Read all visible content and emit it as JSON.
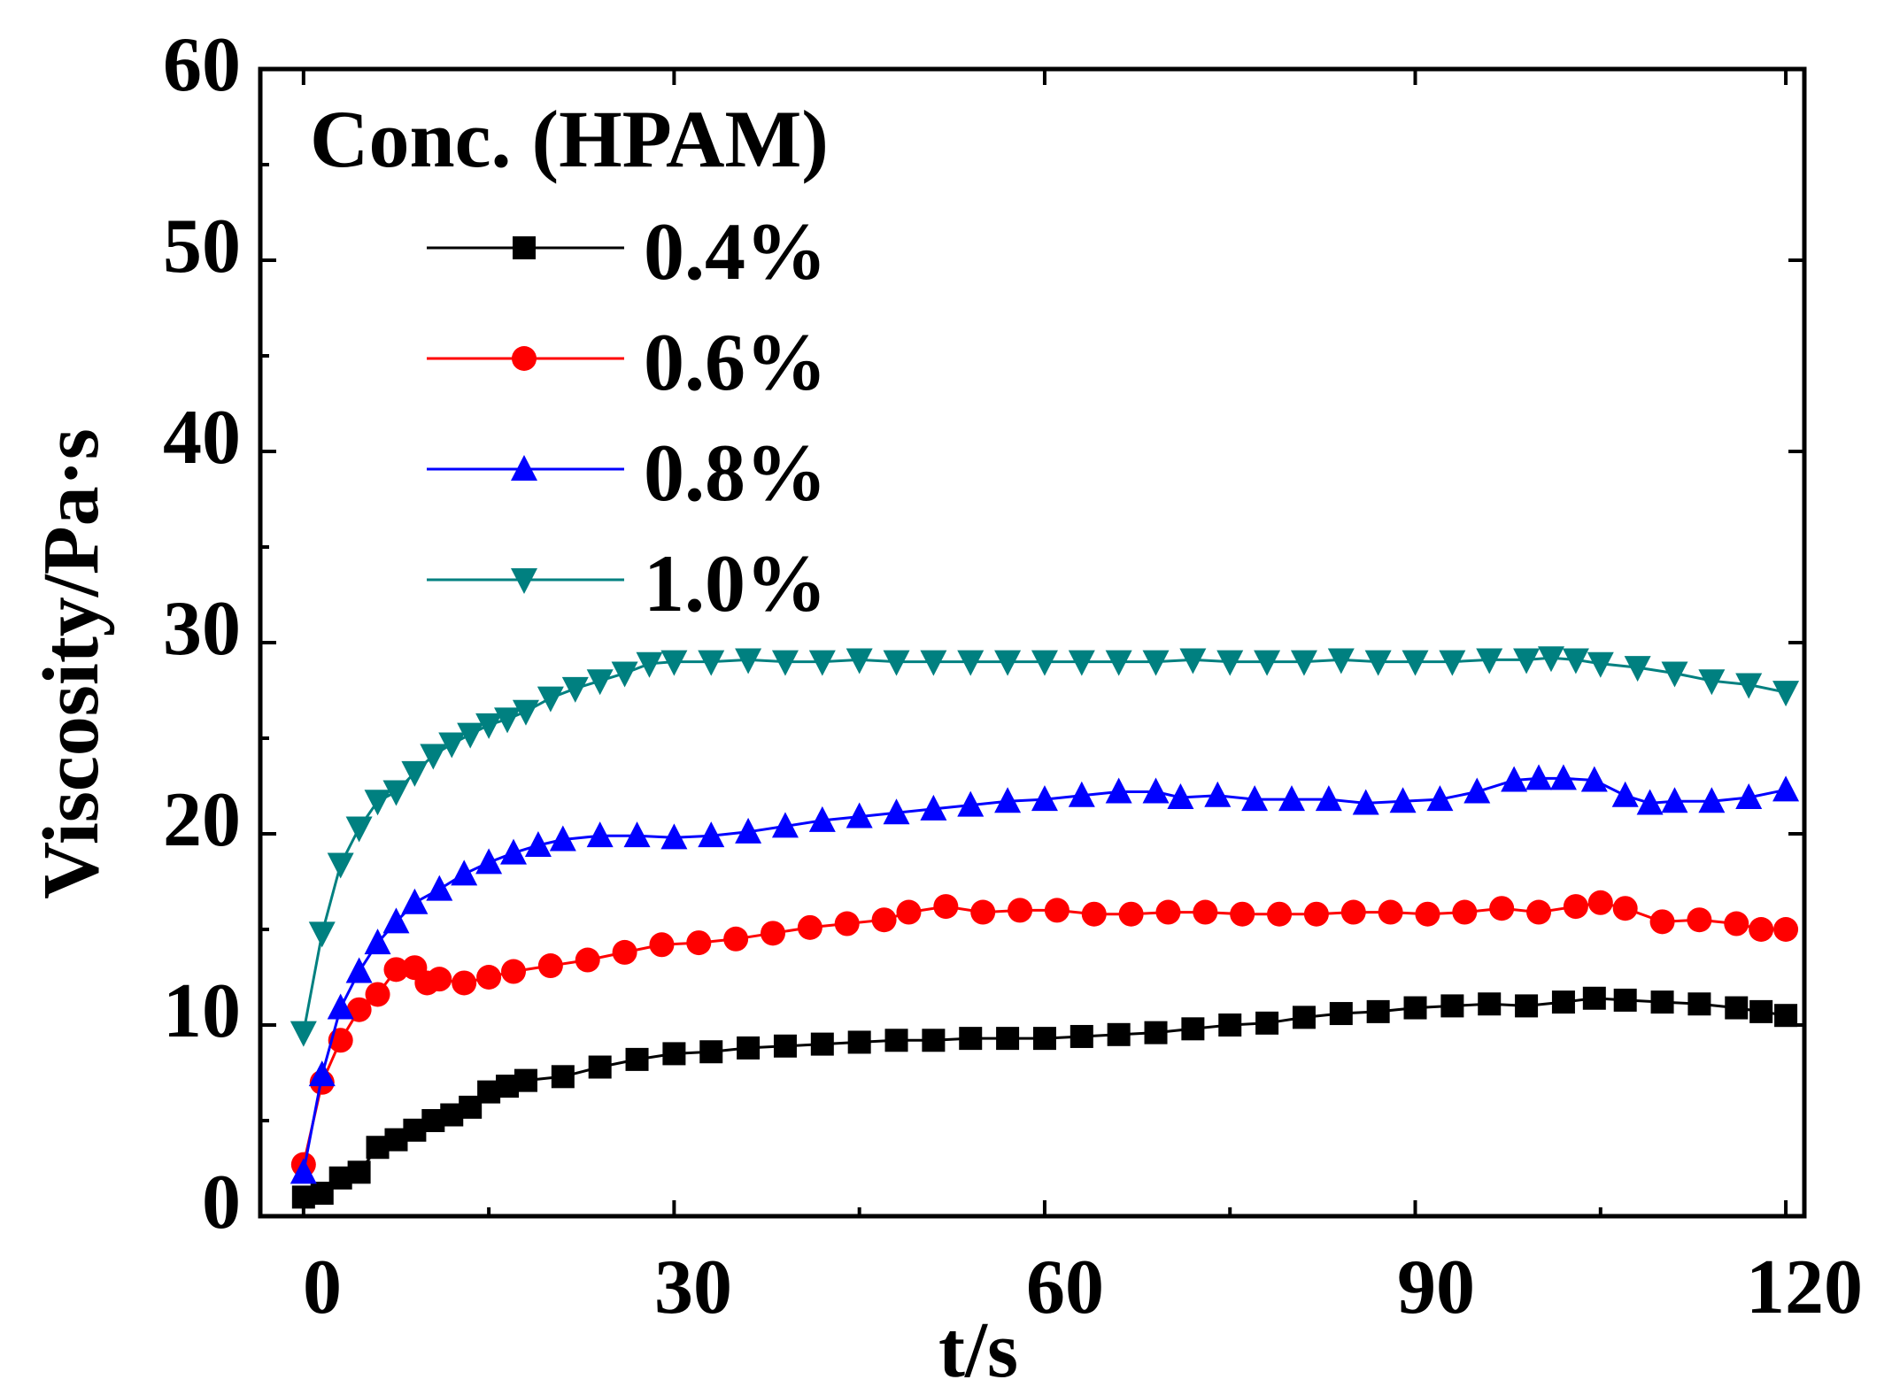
{
  "chart_data": {
    "type": "line",
    "title": "",
    "xlabel": "t/s",
    "ylabel": "Viscosity/Pa·s",
    "xlim": [
      -3.5,
      121.5
    ],
    "ylim": [
      0,
      60
    ],
    "xticks": [
      0,
      30,
      60,
      90,
      120
    ],
    "yticks": [
      0,
      10,
      20,
      30,
      40,
      50,
      60
    ],
    "xtick_labels": [
      "0",
      "30",
      "60",
      "90",
      "120"
    ],
    "ytick_labels": [
      "0",
      "10",
      "20",
      "30",
      "40",
      "50",
      "60"
    ],
    "grid": false,
    "legend_title": "Conc. (HPAM)",
    "legend_position": "top-left",
    "series": [
      {
        "name": "0.4%",
        "color": "#000000",
        "marker": "square",
        "points": [
          [
            0,
            1.0
          ],
          [
            1.5,
            1.2
          ],
          [
            3,
            2.0
          ],
          [
            4.5,
            2.3
          ],
          [
            6,
            3.6
          ],
          [
            7.5,
            4.0
          ],
          [
            9,
            4.5
          ],
          [
            10.5,
            5.0
          ],
          [
            12,
            5.3
          ],
          [
            13.5,
            5.7
          ],
          [
            15,
            6.5
          ],
          [
            16.5,
            6.8
          ],
          [
            18,
            7.1
          ],
          [
            21,
            7.3
          ],
          [
            24,
            7.8
          ],
          [
            27,
            8.2
          ],
          [
            30,
            8.5
          ],
          [
            33,
            8.6
          ],
          [
            36,
            8.8
          ],
          [
            39,
            8.9
          ],
          [
            42,
            9.0
          ],
          [
            45,
            9.1
          ],
          [
            48,
            9.2
          ],
          [
            51,
            9.2
          ],
          [
            54,
            9.3
          ],
          [
            57,
            9.3
          ],
          [
            60,
            9.3
          ],
          [
            63,
            9.4
          ],
          [
            66,
            9.5
          ],
          [
            69,
            9.6
          ],
          [
            72,
            9.8
          ],
          [
            75,
            10.0
          ],
          [
            78,
            10.1
          ],
          [
            81,
            10.4
          ],
          [
            84,
            10.6
          ],
          [
            87,
            10.7
          ],
          [
            90,
            10.9
          ],
          [
            93,
            11.0
          ],
          [
            96,
            11.1
          ],
          [
            99,
            11.0
          ],
          [
            102,
            11.2
          ],
          [
            104.5,
            11.4
          ],
          [
            107,
            11.3
          ],
          [
            110,
            11.2
          ],
          [
            113,
            11.1
          ],
          [
            116,
            10.9
          ],
          [
            118,
            10.7
          ],
          [
            120,
            10.5
          ]
        ]
      },
      {
        "name": "0.6%",
        "color": "#ff0000",
        "marker": "circle",
        "points": [
          [
            0,
            2.7
          ],
          [
            1.5,
            7.0
          ],
          [
            3,
            9.2
          ],
          [
            4.5,
            10.8
          ],
          [
            6,
            11.6
          ],
          [
            7.5,
            12.9
          ],
          [
            9,
            13.0
          ],
          [
            10,
            12.2
          ],
          [
            11,
            12.4
          ],
          [
            13,
            12.2
          ],
          [
            15,
            12.5
          ],
          [
            17,
            12.8
          ],
          [
            20,
            13.1
          ],
          [
            23,
            13.4
          ],
          [
            26,
            13.8
          ],
          [
            29,
            14.2
          ],
          [
            32,
            14.3
          ],
          [
            35,
            14.5
          ],
          [
            38,
            14.8
          ],
          [
            41,
            15.1
          ],
          [
            44,
            15.3
          ],
          [
            47,
            15.5
          ],
          [
            49,
            15.9
          ],
          [
            52,
            16.2
          ],
          [
            55,
            15.9
          ],
          [
            58,
            16.0
          ],
          [
            61,
            16.0
          ],
          [
            64,
            15.8
          ],
          [
            67,
            15.8
          ],
          [
            70,
            15.9
          ],
          [
            73,
            15.9
          ],
          [
            76,
            15.8
          ],
          [
            79,
            15.8
          ],
          [
            82,
            15.8
          ],
          [
            85,
            15.9
          ],
          [
            88,
            15.9
          ],
          [
            91,
            15.8
          ],
          [
            94,
            15.9
          ],
          [
            97,
            16.1
          ],
          [
            100,
            15.9
          ],
          [
            103,
            16.2
          ],
          [
            105,
            16.4
          ],
          [
            107,
            16.1
          ],
          [
            110,
            15.4
          ],
          [
            113,
            15.5
          ],
          [
            116,
            15.3
          ],
          [
            118,
            15.0
          ],
          [
            120,
            15.0
          ]
        ]
      },
      {
        "name": "0.8%",
        "color": "#0000ff",
        "marker": "triangle-up",
        "points": [
          [
            0,
            2.3
          ],
          [
            1.5,
            7.4
          ],
          [
            3,
            10.9
          ],
          [
            4.5,
            12.8
          ],
          [
            6,
            14.3
          ],
          [
            7.5,
            15.4
          ],
          [
            9,
            16.4
          ],
          [
            11,
            17.1
          ],
          [
            13,
            17.9
          ],
          [
            15,
            18.5
          ],
          [
            17,
            19.0
          ],
          [
            19,
            19.4
          ],
          [
            21,
            19.7
          ],
          [
            24,
            19.9
          ],
          [
            27,
            19.9
          ],
          [
            30,
            19.8
          ],
          [
            33,
            19.9
          ],
          [
            36,
            20.1
          ],
          [
            39,
            20.4
          ],
          [
            42,
            20.7
          ],
          [
            45,
            20.9
          ],
          [
            48,
            21.1
          ],
          [
            51,
            21.3
          ],
          [
            54,
            21.5
          ],
          [
            57,
            21.7
          ],
          [
            60,
            21.8
          ],
          [
            63,
            22.0
          ],
          [
            66,
            22.2
          ],
          [
            69,
            22.2
          ],
          [
            71,
            21.9
          ],
          [
            74,
            22.0
          ],
          [
            77,
            21.8
          ],
          [
            80,
            21.8
          ],
          [
            83,
            21.8
          ],
          [
            86,
            21.6
          ],
          [
            89,
            21.7
          ],
          [
            92,
            21.8
          ],
          [
            95,
            22.2
          ],
          [
            98,
            22.8
          ],
          [
            100,
            22.9
          ],
          [
            102,
            22.9
          ],
          [
            104.5,
            22.8
          ],
          [
            107,
            22.0
          ],
          [
            109,
            21.6
          ],
          [
            111,
            21.7
          ],
          [
            114,
            21.7
          ],
          [
            117,
            21.9
          ],
          [
            120,
            22.3
          ]
        ]
      },
      {
        "name": "1.0%",
        "color": "#008080",
        "marker": "triangle-down",
        "points": [
          [
            0,
            9.6
          ],
          [
            1.5,
            14.8
          ],
          [
            3,
            18.4
          ],
          [
            4.5,
            20.3
          ],
          [
            6,
            21.7
          ],
          [
            7.5,
            22.2
          ],
          [
            9,
            23.2
          ],
          [
            10.5,
            24.1
          ],
          [
            12,
            24.7
          ],
          [
            13.5,
            25.2
          ],
          [
            15,
            25.7
          ],
          [
            16.5,
            26.0
          ],
          [
            18,
            26.4
          ],
          [
            20,
            27.1
          ],
          [
            22,
            27.6
          ],
          [
            24,
            28.0
          ],
          [
            26,
            28.4
          ],
          [
            28,
            28.9
          ],
          [
            30,
            29.0
          ],
          [
            33,
            29.0
          ],
          [
            36,
            29.1
          ],
          [
            39,
            29.0
          ],
          [
            42,
            29.0
          ],
          [
            45,
            29.1
          ],
          [
            48,
            29.0
          ],
          [
            51,
            29.0
          ],
          [
            54,
            29.0
          ],
          [
            57,
            29.0
          ],
          [
            60,
            29.0
          ],
          [
            63,
            29.0
          ],
          [
            66,
            29.0
          ],
          [
            69,
            29.0
          ],
          [
            72,
            29.1
          ],
          [
            75,
            29.0
          ],
          [
            78,
            29.0
          ],
          [
            81,
            29.0
          ],
          [
            84,
            29.1
          ],
          [
            87,
            29.0
          ],
          [
            90,
            29.0
          ],
          [
            93,
            29.0
          ],
          [
            96,
            29.1
          ],
          [
            99,
            29.1
          ],
          [
            101,
            29.2
          ],
          [
            103,
            29.1
          ],
          [
            105,
            28.9
          ],
          [
            108,
            28.7
          ],
          [
            111,
            28.4
          ],
          [
            114,
            28.0
          ],
          [
            117,
            27.8
          ],
          [
            120,
            27.4
          ]
        ]
      }
    ]
  }
}
